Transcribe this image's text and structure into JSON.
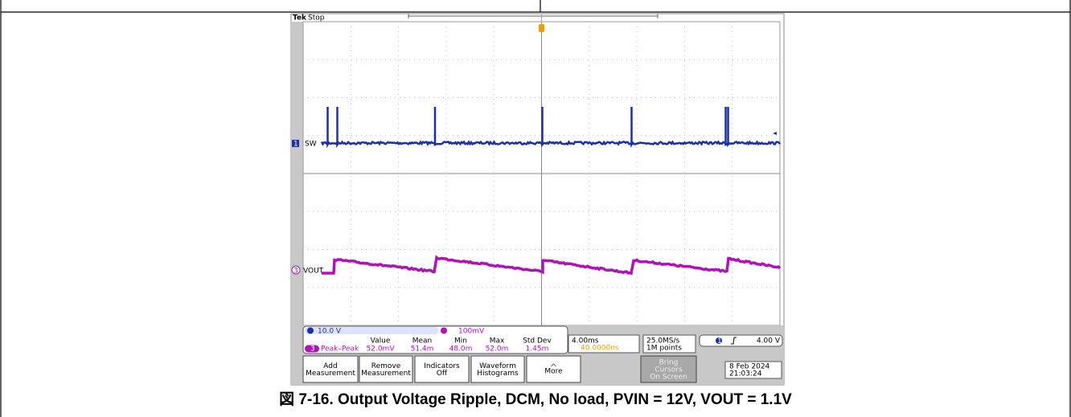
{
  "scope": {
    "brand": "Tek",
    "state": "Stop",
    "channels": [
      {
        "number": "1",
        "label": "SW",
        "scale": "10.0 V"
      },
      {
        "number": "3",
        "label": "VOUT",
        "scale": "100mV"
      }
    ],
    "measurement": {
      "headers": [
        "Value",
        "Mean",
        "Min",
        "Max",
        "Std Dev"
      ],
      "rows": [
        {
          "channel": "3",
          "name": "Peak–Peak",
          "cells": [
            "52.0mV",
            "51.4m",
            "48.0m",
            "52.0m",
            "1.45m"
          ]
        }
      ]
    },
    "timebase": {
      "scale": "4.00ms",
      "delay": "40.0000ns"
    },
    "acquisition": {
      "rate": "25.0MS/s",
      "length": "1M points"
    },
    "trigger": {
      "channel": "1",
      "level": "4.00 V"
    },
    "buttons": [
      [
        "Add",
        "Measurement"
      ],
      [
        "Remove",
        "Measurement"
      ],
      [
        "Indicators",
        "Off"
      ],
      [
        "Waveform",
        "Histograms"
      ],
      [
        "More"
      ],
      [
        "Bring",
        "Cursors",
        "On Screen"
      ]
    ],
    "date": "8 Feb 2024",
    "time": "21:03:24"
  },
  "caption": "図 7-16. Output Voltage Ripple, DCM, No load, PVIN = 12V, VOUT = 1.1V"
}
